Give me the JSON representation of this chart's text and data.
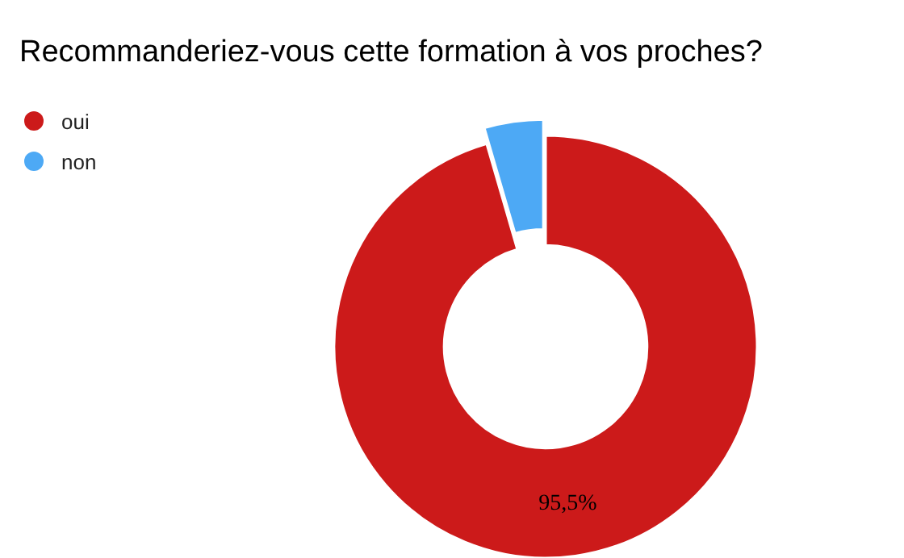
{
  "chart_data": {
    "type": "donut",
    "title": "Recommanderiez-vous cette formation à vos proches?",
    "categories": [
      "oui",
      "non"
    ],
    "values": [
      95.5,
      4.5
    ],
    "colors": [
      "#cc1a1a",
      "#4da9f5"
    ],
    "value_labels": [
      "95,5%",
      null
    ],
    "legend": "top left"
  }
}
